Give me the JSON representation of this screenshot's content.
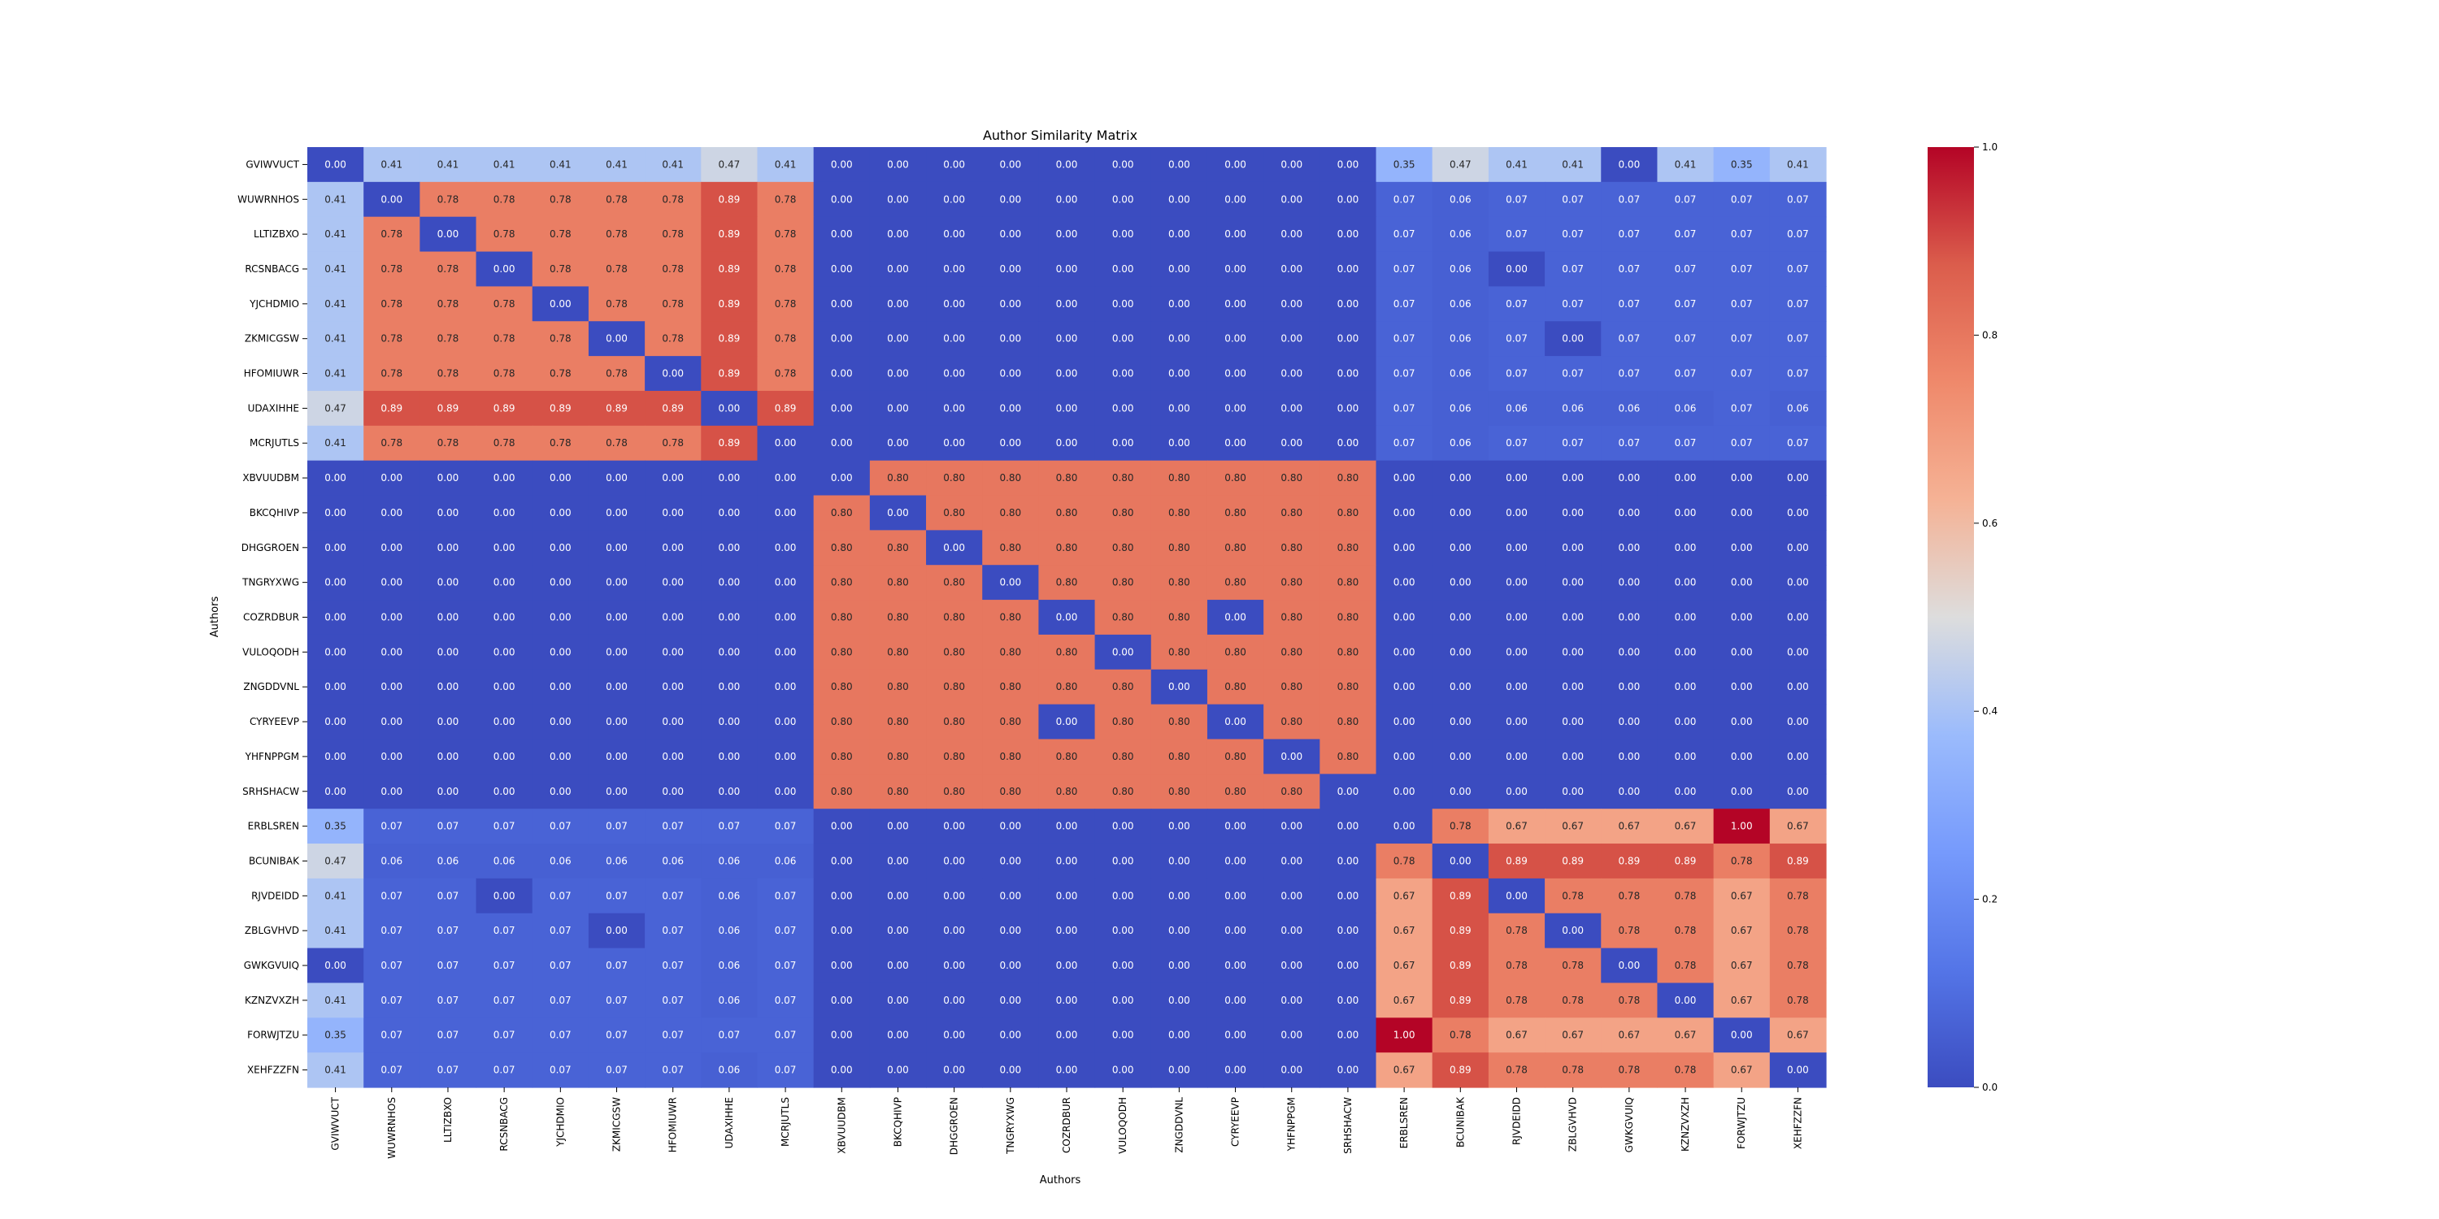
{
  "chart_data": {
    "type": "heatmap",
    "title": "Author Similarity Matrix",
    "xlabel": "Authors",
    "ylabel": "Authors",
    "labels": [
      "GVIWVUCT",
      "WUWRNHOS",
      "LLTIZBXO",
      "RCSNBACG",
      "YJCHDMIO",
      "ZKMICGSW",
      "HFOMIUWR",
      "UDAXIHHE",
      "MCRJUTLS",
      "XBVUUDBM",
      "BKCQHIVP",
      "DHGGROEN",
      "TNGRYXWG",
      "COZRDBUR",
      "VULOQODH",
      "ZNGDDVNL",
      "CYRYEEVP",
      "YHFNPPGM",
      "SRHSHACW",
      "ERBLSREN",
      "BCUNIBAK",
      "RJVDEIDD",
      "ZBLGVHVD",
      "GWKGVUIQ",
      "KZNZVXZH",
      "FORWJTZU",
      "XEHFZZFN"
    ],
    "values": [
      [
        0.0,
        0.41,
        0.41,
        0.41,
        0.41,
        0.41,
        0.41,
        0.47,
        0.41,
        0.0,
        0.0,
        0.0,
        0.0,
        0.0,
        0.0,
        0.0,
        0.0,
        0.0,
        0.0,
        0.35,
        0.47,
        0.41,
        0.41,
        0.0,
        0.41,
        0.35,
        0.41
      ],
      [
        0.41,
        0.0,
        0.78,
        0.78,
        0.78,
        0.78,
        0.78,
        0.89,
        0.78,
        0.0,
        0.0,
        0.0,
        0.0,
        0.0,
        0.0,
        0.0,
        0.0,
        0.0,
        0.0,
        0.07,
        0.06,
        0.07,
        0.07,
        0.07,
        0.07,
        0.07,
        0.07
      ],
      [
        0.41,
        0.78,
        0.0,
        0.78,
        0.78,
        0.78,
        0.78,
        0.89,
        0.78,
        0.0,
        0.0,
        0.0,
        0.0,
        0.0,
        0.0,
        0.0,
        0.0,
        0.0,
        0.0,
        0.07,
        0.06,
        0.07,
        0.07,
        0.07,
        0.07,
        0.07,
        0.07
      ],
      [
        0.41,
        0.78,
        0.78,
        0.0,
        0.78,
        0.78,
        0.78,
        0.89,
        0.78,
        0.0,
        0.0,
        0.0,
        0.0,
        0.0,
        0.0,
        0.0,
        0.0,
        0.0,
        0.0,
        0.07,
        0.06,
        0.0,
        0.07,
        0.07,
        0.07,
        0.07,
        0.07
      ],
      [
        0.41,
        0.78,
        0.78,
        0.78,
        0.0,
        0.78,
        0.78,
        0.89,
        0.78,
        0.0,
        0.0,
        0.0,
        0.0,
        0.0,
        0.0,
        0.0,
        0.0,
        0.0,
        0.0,
        0.07,
        0.06,
        0.07,
        0.07,
        0.07,
        0.07,
        0.07,
        0.07
      ],
      [
        0.41,
        0.78,
        0.78,
        0.78,
        0.78,
        0.0,
        0.78,
        0.89,
        0.78,
        0.0,
        0.0,
        0.0,
        0.0,
        0.0,
        0.0,
        0.0,
        0.0,
        0.0,
        0.0,
        0.07,
        0.06,
        0.07,
        0.0,
        0.07,
        0.07,
        0.07,
        0.07
      ],
      [
        0.41,
        0.78,
        0.78,
        0.78,
        0.78,
        0.78,
        0.0,
        0.89,
        0.78,
        0.0,
        0.0,
        0.0,
        0.0,
        0.0,
        0.0,
        0.0,
        0.0,
        0.0,
        0.0,
        0.07,
        0.06,
        0.07,
        0.07,
        0.07,
        0.07,
        0.07,
        0.07
      ],
      [
        0.47,
        0.89,
        0.89,
        0.89,
        0.89,
        0.89,
        0.89,
        0.0,
        0.89,
        0.0,
        0.0,
        0.0,
        0.0,
        0.0,
        0.0,
        0.0,
        0.0,
        0.0,
        0.0,
        0.07,
        0.06,
        0.06,
        0.06,
        0.06,
        0.06,
        0.07,
        0.06
      ],
      [
        0.41,
        0.78,
        0.78,
        0.78,
        0.78,
        0.78,
        0.78,
        0.89,
        0.0,
        0.0,
        0.0,
        0.0,
        0.0,
        0.0,
        0.0,
        0.0,
        0.0,
        0.0,
        0.0,
        0.07,
        0.06,
        0.07,
        0.07,
        0.07,
        0.07,
        0.07,
        0.07
      ],
      [
        0.0,
        0.0,
        0.0,
        0.0,
        0.0,
        0.0,
        0.0,
        0.0,
        0.0,
        0.0,
        0.8,
        0.8,
        0.8,
        0.8,
        0.8,
        0.8,
        0.8,
        0.8,
        0.8,
        0.0,
        0.0,
        0.0,
        0.0,
        0.0,
        0.0,
        0.0,
        0.0
      ],
      [
        0.0,
        0.0,
        0.0,
        0.0,
        0.0,
        0.0,
        0.0,
        0.0,
        0.0,
        0.8,
        0.0,
        0.8,
        0.8,
        0.8,
        0.8,
        0.8,
        0.8,
        0.8,
        0.8,
        0.0,
        0.0,
        0.0,
        0.0,
        0.0,
        0.0,
        0.0,
        0.0
      ],
      [
        0.0,
        0.0,
        0.0,
        0.0,
        0.0,
        0.0,
        0.0,
        0.0,
        0.0,
        0.8,
        0.8,
        0.0,
        0.8,
        0.8,
        0.8,
        0.8,
        0.8,
        0.8,
        0.8,
        0.0,
        0.0,
        0.0,
        0.0,
        0.0,
        0.0,
        0.0,
        0.0
      ],
      [
        0.0,
        0.0,
        0.0,
        0.0,
        0.0,
        0.0,
        0.0,
        0.0,
        0.0,
        0.8,
        0.8,
        0.8,
        0.0,
        0.8,
        0.8,
        0.8,
        0.8,
        0.8,
        0.8,
        0.0,
        0.0,
        0.0,
        0.0,
        0.0,
        0.0,
        0.0,
        0.0
      ],
      [
        0.0,
        0.0,
        0.0,
        0.0,
        0.0,
        0.0,
        0.0,
        0.0,
        0.0,
        0.8,
        0.8,
        0.8,
        0.8,
        0.0,
        0.8,
        0.8,
        0.0,
        0.8,
        0.8,
        0.0,
        0.0,
        0.0,
        0.0,
        0.0,
        0.0,
        0.0,
        0.0
      ],
      [
        0.0,
        0.0,
        0.0,
        0.0,
        0.0,
        0.0,
        0.0,
        0.0,
        0.0,
        0.8,
        0.8,
        0.8,
        0.8,
        0.8,
        0.0,
        0.8,
        0.8,
        0.8,
        0.8,
        0.0,
        0.0,
        0.0,
        0.0,
        0.0,
        0.0,
        0.0,
        0.0
      ],
      [
        0.0,
        0.0,
        0.0,
        0.0,
        0.0,
        0.0,
        0.0,
        0.0,
        0.0,
        0.8,
        0.8,
        0.8,
        0.8,
        0.8,
        0.8,
        0.0,
        0.8,
        0.8,
        0.8,
        0.0,
        0.0,
        0.0,
        0.0,
        0.0,
        0.0,
        0.0,
        0.0
      ],
      [
        0.0,
        0.0,
        0.0,
        0.0,
        0.0,
        0.0,
        0.0,
        0.0,
        0.0,
        0.8,
        0.8,
        0.8,
        0.8,
        0.0,
        0.8,
        0.8,
        0.0,
        0.8,
        0.8,
        0.0,
        0.0,
        0.0,
        0.0,
        0.0,
        0.0,
        0.0,
        0.0
      ],
      [
        0.0,
        0.0,
        0.0,
        0.0,
        0.0,
        0.0,
        0.0,
        0.0,
        0.0,
        0.8,
        0.8,
        0.8,
        0.8,
        0.8,
        0.8,
        0.8,
        0.8,
        0.0,
        0.8,
        0.0,
        0.0,
        0.0,
        0.0,
        0.0,
        0.0,
        0.0,
        0.0
      ],
      [
        0.0,
        0.0,
        0.0,
        0.0,
        0.0,
        0.0,
        0.0,
        0.0,
        0.0,
        0.8,
        0.8,
        0.8,
        0.8,
        0.8,
        0.8,
        0.8,
        0.8,
        0.8,
        0.0,
        0.0,
        0.0,
        0.0,
        0.0,
        0.0,
        0.0,
        0.0,
        0.0
      ],
      [
        0.35,
        0.07,
        0.07,
        0.07,
        0.07,
        0.07,
        0.07,
        0.07,
        0.07,
        0.0,
        0.0,
        0.0,
        0.0,
        0.0,
        0.0,
        0.0,
        0.0,
        0.0,
        0.0,
        0.0,
        0.78,
        0.67,
        0.67,
        0.67,
        0.67,
        1.0,
        0.67
      ],
      [
        0.47,
        0.06,
        0.06,
        0.06,
        0.06,
        0.06,
        0.06,
        0.06,
        0.06,
        0.0,
        0.0,
        0.0,
        0.0,
        0.0,
        0.0,
        0.0,
        0.0,
        0.0,
        0.0,
        0.78,
        0.0,
        0.89,
        0.89,
        0.89,
        0.89,
        0.78,
        0.89
      ],
      [
        0.41,
        0.07,
        0.07,
        0.0,
        0.07,
        0.07,
        0.07,
        0.06,
        0.07,
        0.0,
        0.0,
        0.0,
        0.0,
        0.0,
        0.0,
        0.0,
        0.0,
        0.0,
        0.0,
        0.67,
        0.89,
        0.0,
        0.78,
        0.78,
        0.78,
        0.67,
        0.78
      ],
      [
        0.41,
        0.07,
        0.07,
        0.07,
        0.07,
        0.0,
        0.07,
        0.06,
        0.07,
        0.0,
        0.0,
        0.0,
        0.0,
        0.0,
        0.0,
        0.0,
        0.0,
        0.0,
        0.0,
        0.67,
        0.89,
        0.78,
        0.0,
        0.78,
        0.78,
        0.67,
        0.78
      ],
      [
        0.0,
        0.07,
        0.07,
        0.07,
        0.07,
        0.07,
        0.07,
        0.06,
        0.07,
        0.0,
        0.0,
        0.0,
        0.0,
        0.0,
        0.0,
        0.0,
        0.0,
        0.0,
        0.0,
        0.67,
        0.89,
        0.78,
        0.78,
        0.0,
        0.78,
        0.67,
        0.78
      ],
      [
        0.41,
        0.07,
        0.07,
        0.07,
        0.07,
        0.07,
        0.07,
        0.06,
        0.07,
        0.0,
        0.0,
        0.0,
        0.0,
        0.0,
        0.0,
        0.0,
        0.0,
        0.0,
        0.0,
        0.67,
        0.89,
        0.78,
        0.78,
        0.78,
        0.0,
        0.67,
        0.78
      ],
      [
        0.35,
        0.07,
        0.07,
        0.07,
        0.07,
        0.07,
        0.07,
        0.07,
        0.07,
        0.0,
        0.0,
        0.0,
        0.0,
        0.0,
        0.0,
        0.0,
        0.0,
        0.0,
        0.0,
        1.0,
        0.78,
        0.67,
        0.67,
        0.67,
        0.67,
        0.0,
        0.67
      ],
      [
        0.41,
        0.07,
        0.07,
        0.07,
        0.07,
        0.07,
        0.07,
        0.06,
        0.07,
        0.0,
        0.0,
        0.0,
        0.0,
        0.0,
        0.0,
        0.0,
        0.0,
        0.0,
        0.0,
        0.67,
        0.89,
        0.78,
        0.78,
        0.78,
        0.78,
        0.67,
        0.0
      ]
    ],
    "colorscale": "coolwarm",
    "colorbar": {
      "range": [
        0,
        1
      ],
      "ticks": [
        "0.0",
        "0.2",
        "0.4",
        "0.6",
        "0.8",
        "1.0"
      ]
    },
    "grid": false
  }
}
